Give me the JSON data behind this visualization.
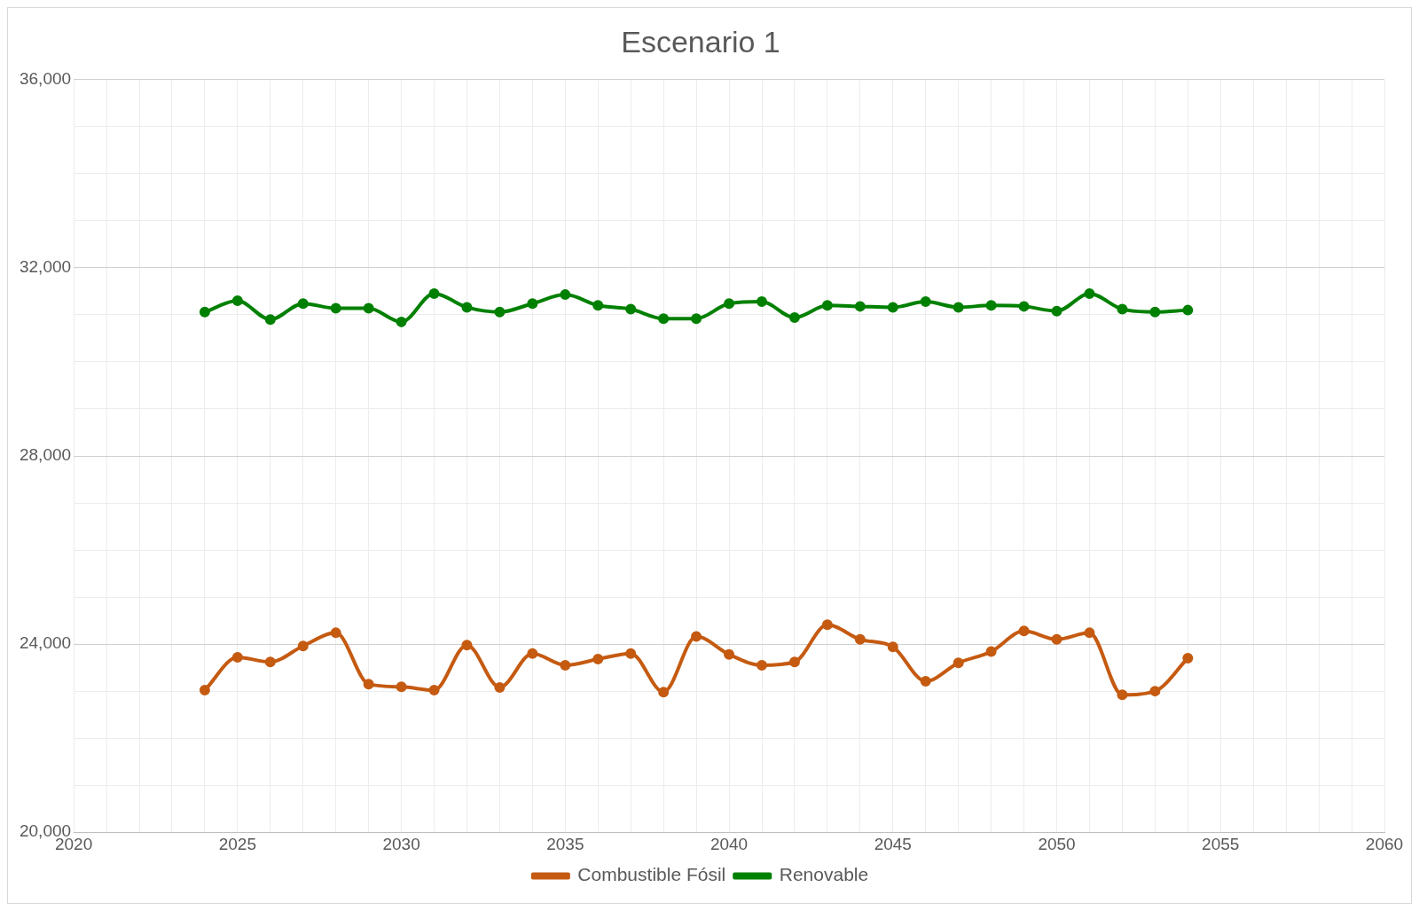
{
  "chart_data": {
    "type": "line",
    "title": "Escenario 1",
    "x": [
      2024,
      2025,
      2026,
      2027,
      2028,
      2029,
      2030,
      2031,
      2032,
      2033,
      2034,
      2035,
      2036,
      2037,
      2038,
      2039,
      2040,
      2041,
      2042,
      2043,
      2044,
      2045,
      2046,
      2047,
      2048,
      2049,
      2050,
      2051,
      2052,
      2053,
      2054
    ],
    "series": [
      {
        "name": "Combustible Fósil",
        "color": "#c55a11",
        "values": [
          23020,
          23720,
          23620,
          23960,
          24240,
          23150,
          23090,
          23020,
          23980,
          23080,
          23800,
          23550,
          23680,
          23800,
          22980,
          24160,
          23780,
          23550,
          23620,
          24410,
          24100,
          23940,
          23210,
          23600,
          23840,
          24280,
          24100,
          24240,
          22920,
          23000,
          23700
        ]
      },
      {
        "name": "Renovable",
        "color": "#008000",
        "values": [
          31060,
          31300,
          30900,
          31240,
          31140,
          31140,
          30850,
          31450,
          31160,
          31060,
          31240,
          31430,
          31200,
          31120,
          30920,
          30920,
          31240,
          31280,
          30940,
          31200,
          31180,
          31160,
          31280,
          31160,
          31200,
          31180,
          31080,
          31450,
          31120,
          31060,
          31100
        ]
      }
    ],
    "xlim": [
      2020,
      2060
    ],
    "xticks": [
      2020,
      {
        "value": 2021,
        "label": null
      },
      {
        "value": 2022,
        "label": null
      },
      {
        "value": 2023,
        "label": null
      },
      {
        "value": 2024,
        "label": null
      },
      2025,
      {
        "value": 2026,
        "label": null
      },
      {
        "value": 2027,
        "label": null
      },
      {
        "value": 2028,
        "label": null
      },
      {
        "value": 2029,
        "label": null
      },
      2030,
      {
        "value": 2031,
        "label": null
      },
      {
        "value": 2032,
        "label": null
      },
      {
        "value": 2033,
        "label": null
      },
      {
        "value": 2034,
        "label": null
      },
      2035,
      {
        "value": 2036,
        "label": null
      },
      {
        "value": 2037,
        "label": null
      },
      {
        "value": 2038,
        "label": null
      },
      {
        "value": 2039,
        "label": null
      },
      2040,
      {
        "value": 2041,
        "label": null
      },
      {
        "value": 2042,
        "label": null
      },
      {
        "value": 2043,
        "label": null
      },
      {
        "value": 2044,
        "label": null
      },
      2045,
      {
        "value": 2046,
        "label": null
      },
      {
        "value": 2047,
        "label": null
      },
      {
        "value": 2048,
        "label": null
      },
      {
        "value": 2049,
        "label": null
      },
      2050,
      {
        "value": 2051,
        "label": null
      },
      {
        "value": 2052,
        "label": null
      },
      {
        "value": 2053,
        "label": null
      },
      {
        "value": 2054,
        "label": null
      },
      2055,
      {
        "value": 2056,
        "label": null
      },
      {
        "value": 2057,
        "label": null
      },
      {
        "value": 2058,
        "label": null
      },
      {
        "value": 2059,
        "label": null
      },
      2060
    ],
    "ylim": [
      20000,
      36000
    ],
    "yticks": [
      {
        "value": 20000,
        "label": "20,000"
      },
      {
        "value": 21000,
        "label": null
      },
      {
        "value": 22000,
        "label": null
      },
      {
        "value": 23000,
        "label": null
      },
      {
        "value": 24000,
        "label": "24,000"
      },
      {
        "value": 25000,
        "label": null
      },
      {
        "value": 26000,
        "label": null
      },
      {
        "value": 27000,
        "label": null
      },
      {
        "value": 28000,
        "label": "28,000"
      },
      {
        "value": 29000,
        "label": null
      },
      {
        "value": 30000,
        "label": null
      },
      {
        "value": 31000,
        "label": null
      },
      {
        "value": 32000,
        "label": "32,000"
      },
      {
        "value": 33000,
        "label": null
      },
      {
        "value": 34000,
        "label": null
      },
      {
        "value": 35000,
        "label": null
      },
      {
        "value": 36000,
        "label": "36,000"
      }
    ],
    "grid": true,
    "legend": "bottom",
    "marker": "circle",
    "line_style": "solid"
  }
}
